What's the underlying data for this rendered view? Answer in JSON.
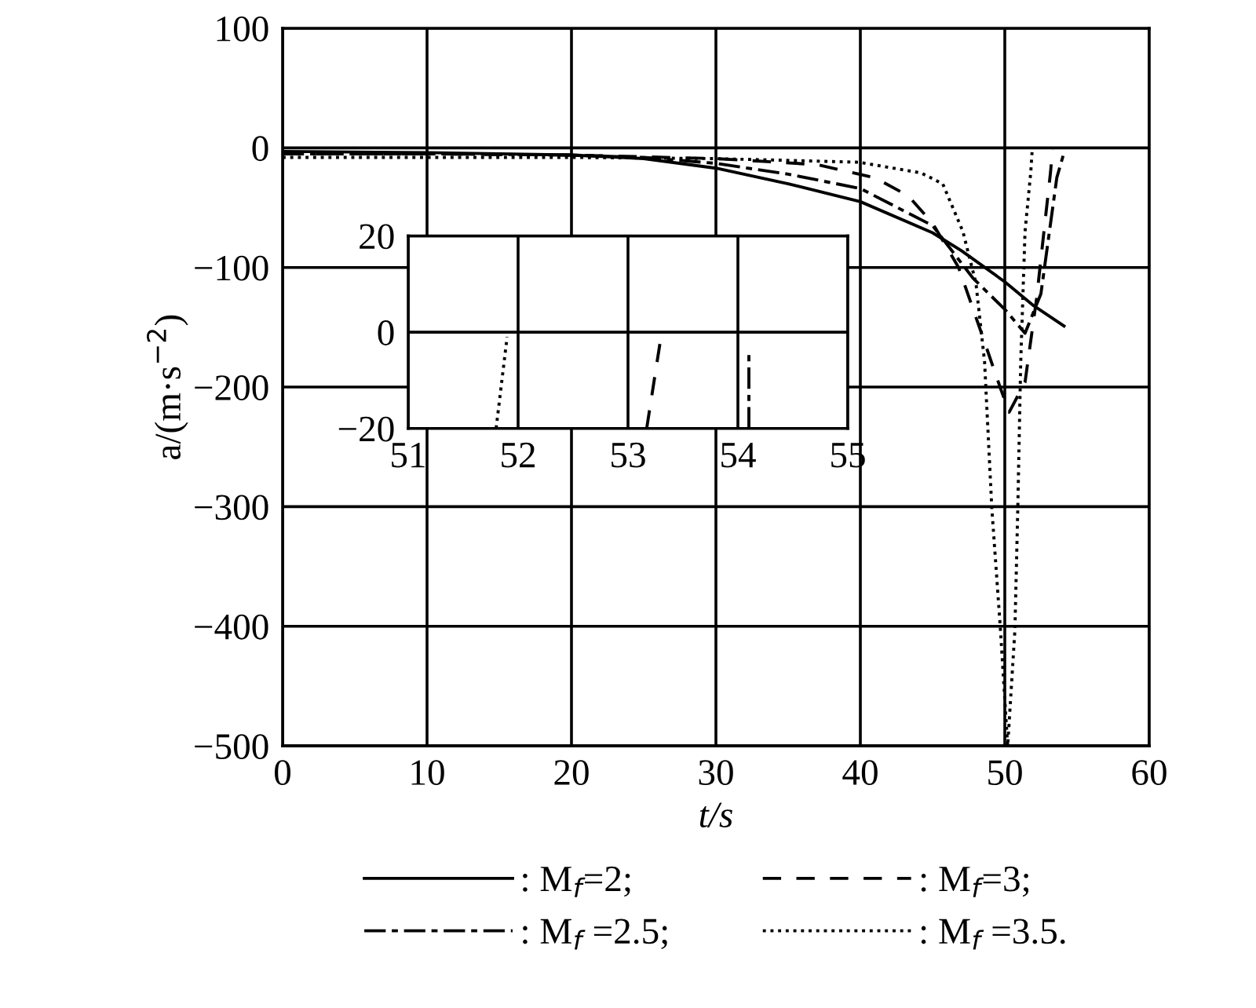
{
  "chart_data": [
    {
      "type": "line",
      "xlabel": "t/s",
      "ylabel": "a/(m·s$^{−2}$)",
      "xlim": [
        0,
        60
      ],
      "xticks": [
        0,
        10,
        20,
        30,
        40,
        50,
        60
      ],
      "ylim": [
        -500,
        100
      ],
      "yticks": [
        -500,
        -400,
        -300,
        -200,
        -100,
        0,
        100
      ],
      "grid": true,
      "legend": "bottom",
      "marker": "none",
      "series": [
        {
          "name": ": M$_{f}$=2;",
          "color": "#000000",
          "line_style": "solid",
          "x": [
            0,
            10,
            20,
            25,
            30,
            35,
            40,
            45,
            47,
            50,
            52,
            54.1
          ],
          "values": [
            -3,
            -4,
            -6,
            -9,
            -17,
            -30,
            -45,
            -71,
            -86,
            -112,
            -132,
            -149
          ]
        },
        {
          "name": ": M$_{f}$ =2.5;",
          "color": "#000000",
          "line_style": "dashdot",
          "x": [
            0,
            10,
            20,
            25,
            30,
            35,
            40,
            45,
            47.8,
            50,
            51.4,
            52.5,
            53.6,
            54.1
          ],
          "values": [
            -5,
            -5,
            -6,
            -8,
            -13,
            -22,
            -34,
            -65,
            -109,
            -135,
            -155,
            -122,
            -25,
            -4
          ]
        },
        {
          "name": ": M$_{f}$=3;",
          "color": "#000000",
          "line_style": "dashed",
          "x": [
            0,
            10,
            20,
            30,
            37,
            41,
            43.3,
            45,
            46.8,
            48.3,
            49.7,
            50.3,
            51.4,
            52.2,
            52.8,
            53.17,
            53.3
          ],
          "values": [
            -5,
            -5,
            -6,
            -9,
            -14,
            -25,
            -40,
            -63,
            -100,
            -152,
            -201,
            -221,
            -196,
            -126,
            -60,
            -20,
            -1
          ]
        },
        {
          "name": ": M$_{f}$ =3.5.",
          "color": "#000000",
          "line_style": "dotted",
          "x": [
            0,
            10,
            20,
            30,
            39.9,
            44.2,
            45.7,
            47.1,
            48,
            48.6,
            49.1,
            49.7,
            50.2,
            50.7,
            50.9,
            51.1,
            51.4,
            51.8,
            51.9
          ],
          "values": [
            -8,
            -8,
            -8,
            -9,
            -12,
            -21,
            -30,
            -70,
            -113,
            -179,
            -301,
            -403,
            -500,
            -403,
            -301,
            -180,
            -70,
            -20,
            -1
          ]
        }
      ]
    },
    {
      "type": "line",
      "xlim": [
        51,
        55
      ],
      "xticks": [
        51,
        52,
        53,
        54,
        55
      ],
      "ylim": [
        -20,
        20
      ],
      "yticks": [
        -20,
        0,
        20
      ],
      "grid": true,
      "marker": "none",
      "series": [
        {
          "color": "#000000",
          "line_style": "dotted",
          "x": [
            51.8,
            51.9
          ],
          "values": [
            -20,
            -1
          ]
        },
        {
          "color": "#000000",
          "line_style": "dashed",
          "x": [
            53.17,
            53.3
          ],
          "values": [
            -20,
            -1
          ]
        },
        {
          "color": "#000000",
          "line_style": "dashdot",
          "x": [
            54.1,
            54.1
          ],
          "values": [
            -20,
            -4
          ]
        }
      ]
    }
  ]
}
